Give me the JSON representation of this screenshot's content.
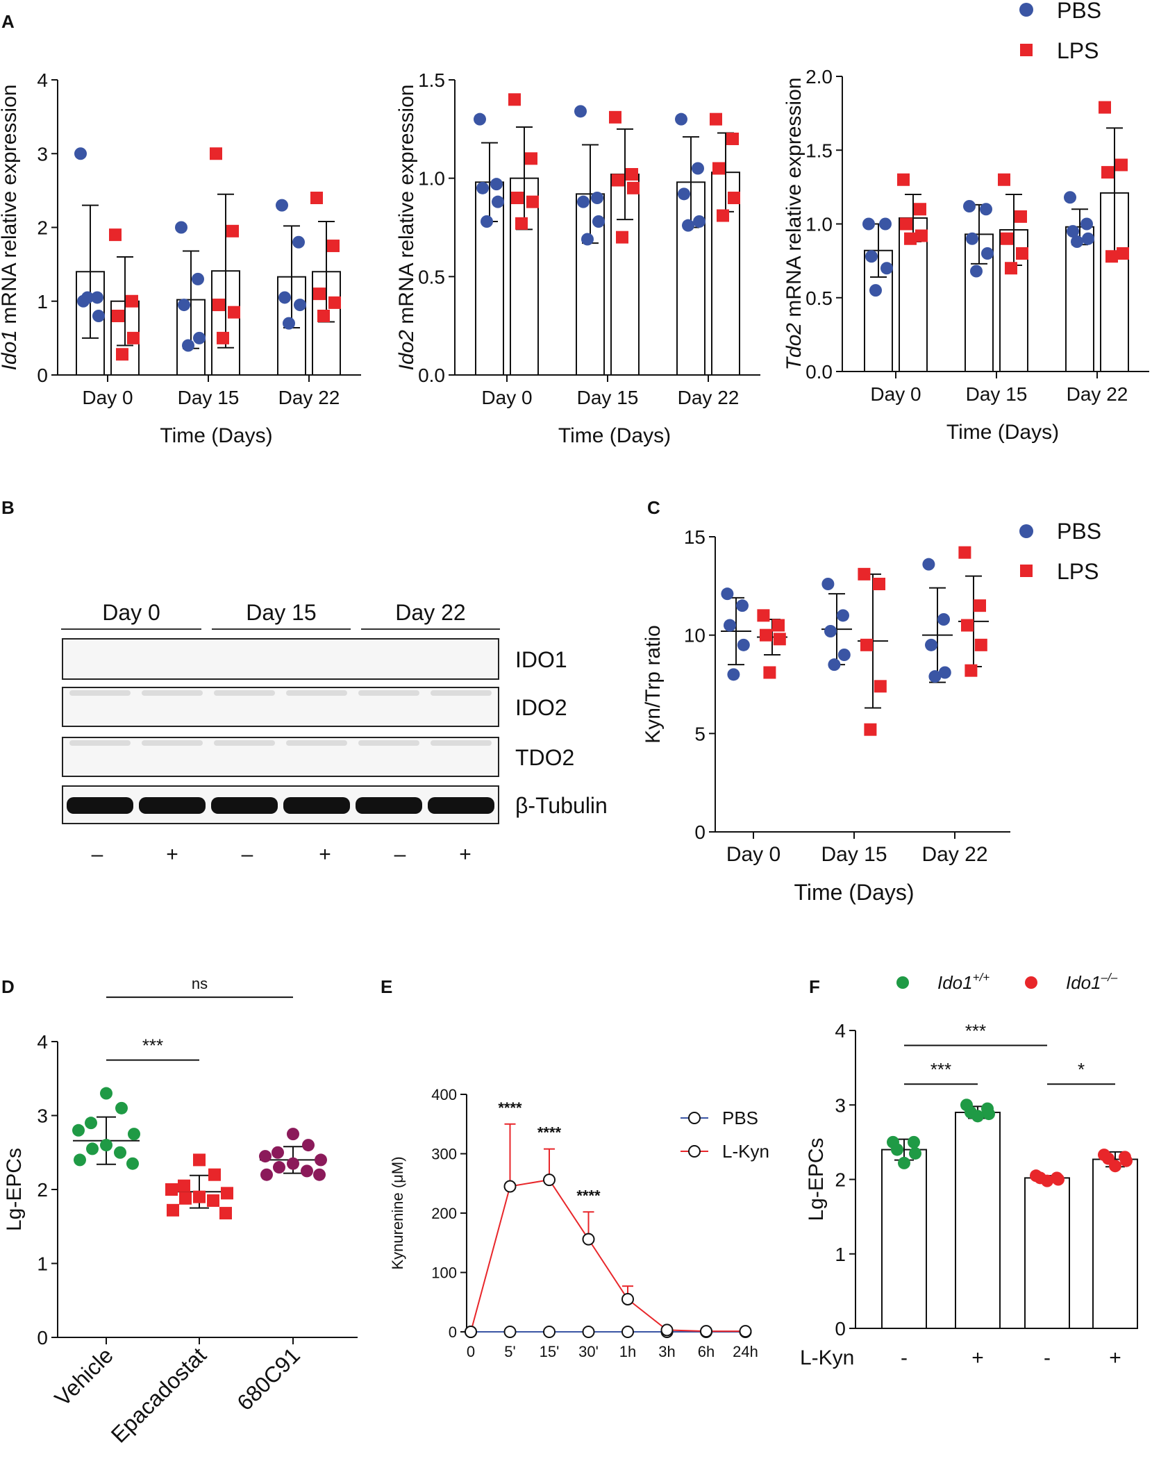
{
  "colors": {
    "pbs": "#3a55a4",
    "lps": "#e8262a",
    "wt": "#1f9a45",
    "ko": "#e8262a",
    "purple": "#8b1a5a",
    "axis": "#111111"
  },
  "panel_labels": {
    "a": "A",
    "b": "B",
    "c": "C",
    "d": "D",
    "e": "E",
    "f": "F"
  },
  "legend_top": {
    "pbs": "PBS",
    "lps": "LPS"
  },
  "legend_c": {
    "pbs": "PBS",
    "lps": "LPS"
  },
  "chart_data": [
    {
      "id": "A1",
      "type": "bar",
      "title": "",
      "ylabel_italic": "Ido1",
      "ylabel_rest": " mRNA relative expression",
      "xlabel": "Time (Days)",
      "categories": [
        "Day 0",
        "Day 15",
        "Day 22"
      ],
      "ylim": [
        0,
        4
      ],
      "yticks": [
        "0",
        "1",
        "2",
        "3",
        "4"
      ],
      "ytick_values": [
        0,
        1,
        2,
        3,
        4
      ],
      "series": [
        {
          "name": "PBS",
          "means": [
            1.4,
            1.02,
            1.33
          ],
          "sd": [
            0.9,
            0.66,
            0.69
          ],
          "points": [
            [
              3.0,
              1.05,
              1.0,
              0.8,
              1.05
            ],
            [
              2.0,
              1.3,
              0.95,
              0.5,
              0.4
            ],
            [
              2.3,
              1.8,
              1.05,
              0.95,
              0.7
            ]
          ]
        },
        {
          "name": "LPS",
          "means": [
            1.0,
            1.41,
            1.4
          ],
          "sd": [
            0.6,
            1.04,
            0.68
          ],
          "points": [
            [
              1.9,
              1.0,
              0.8,
              0.5,
              0.28
            ],
            [
              3.0,
              1.95,
              0.95,
              0.85,
              0.5
            ],
            [
              2.4,
              1.75,
              1.1,
              0.98,
              0.8
            ]
          ]
        }
      ]
    },
    {
      "id": "A2",
      "type": "bar",
      "ylabel_italic": "Ido2",
      "ylabel_rest": " mRNA relative expression",
      "xlabel": "Time (Days)",
      "categories": [
        "Day 0",
        "Day 15",
        "Day 22"
      ],
      "ylim": [
        0,
        1.5
      ],
      "yticks": [
        "0.0",
        "0.5",
        "1.0",
        "1.5"
      ],
      "ytick_values": [
        0,
        0.5,
        1.0,
        1.5
      ],
      "series": [
        {
          "name": "PBS",
          "means": [
            0.98,
            0.92,
            0.98
          ],
          "sd": [
            0.2,
            0.25,
            0.23
          ],
          "points": [
            [
              1.3,
              0.97,
              0.95,
              0.88,
              0.78
            ],
            [
              1.34,
              0.9,
              0.88,
              0.78,
              0.69
            ],
            [
              1.3,
              1.05,
              0.92,
              0.78,
              0.76
            ]
          ]
        },
        {
          "name": "LPS",
          "means": [
            1.0,
            1.02,
            1.03
          ],
          "sd": [
            0.26,
            0.23,
            0.2
          ],
          "points": [
            [
              1.4,
              1.1,
              0.9,
              0.88,
              0.77
            ],
            [
              1.31,
              1.02,
              0.99,
              0.95,
              0.7
            ],
            [
              1.3,
              1.2,
              1.05,
              0.9,
              0.81
            ]
          ]
        }
      ]
    },
    {
      "id": "A3",
      "type": "bar",
      "ylabel_italic": "Tdo2",
      "ylabel_rest": " mRNA relative expression",
      "xlabel": "Time (Days)",
      "categories": [
        "Day 0",
        "Day 15",
        "Day 22"
      ],
      "ylim": [
        0,
        2.0
      ],
      "yticks": [
        "0.0",
        "0.5",
        "1.0",
        "1.5",
        "2.0"
      ],
      "ytick_values": [
        0,
        0.5,
        1.0,
        1.5,
        2.0
      ],
      "series": [
        {
          "name": "PBS",
          "means": [
            0.82,
            0.93,
            0.98
          ],
          "sd": [
            0.18,
            0.2,
            0.12
          ],
          "points": [
            [
              1.0,
              1.0,
              0.78,
              0.7,
              0.55
            ],
            [
              1.12,
              1.1,
              0.9,
              0.8,
              0.68
            ],
            [
              1.18,
              1.0,
              0.95,
              0.9,
              0.88
            ]
          ]
        },
        {
          "name": "LPS",
          "means": [
            1.04,
            0.96,
            1.21
          ],
          "sd": [
            0.16,
            0.24,
            0.44
          ],
          "points": [
            [
              1.3,
              1.1,
              1.0,
              0.92,
              0.9
            ],
            [
              1.3,
              1.05,
              0.9,
              0.8,
              0.7
            ],
            [
              1.79,
              1.4,
              1.35,
              0.8,
              0.78
            ]
          ]
        }
      ]
    },
    {
      "id": "C",
      "type": "scatter",
      "ylabel": "Kyn/Trp ratio",
      "xlabel": "Time (Days)",
      "categories": [
        "Day 0",
        "Day 15",
        "Day 22"
      ],
      "ylim": [
        0,
        15
      ],
      "yticks": [
        "0",
        "5",
        "10",
        "15"
      ],
      "ytick_values": [
        0,
        5,
        10,
        15
      ],
      "series": [
        {
          "name": "PBS",
          "means": [
            10.2,
            10.3,
            10.0
          ],
          "sd": [
            1.7,
            1.8,
            2.4
          ],
          "points": [
            [
              12.1,
              11.5,
              10.5,
              9.5,
              8.0
            ],
            [
              12.6,
              11.0,
              10.2,
              9.0,
              8.5
            ],
            [
              13.6,
              10.8,
              9.5,
              8.1,
              7.9
            ]
          ]
        },
        {
          "name": "LPS",
          "means": [
            9.9,
            9.7,
            10.7
          ],
          "sd": [
            0.9,
            3.4,
            2.3
          ],
          "points": [
            [
              11.0,
              10.5,
              10.0,
              9.8,
              8.1
            ],
            [
              13.1,
              12.6,
              9.5,
              7.4,
              5.2
            ],
            [
              14.2,
              11.5,
              10.5,
              9.5,
              8.2
            ]
          ]
        }
      ]
    },
    {
      "id": "D",
      "type": "scatter",
      "ylabel": "Lg-EPCs",
      "categories": [
        "Vehicle",
        "Epacadostat",
        "680C91"
      ],
      "ylim": [
        0,
        4
      ],
      "yticks": [
        "0",
        "1",
        "2",
        "3",
        "4"
      ],
      "ytick_values": [
        0,
        1,
        2,
        3,
        4
      ],
      "groups": [
        {
          "name": "Vehicle",
          "mean": 2.66,
          "sd": 0.32,
          "points": [
            3.3,
            3.1,
            2.9,
            2.8,
            2.75,
            2.6,
            2.55,
            2.5,
            2.4,
            2.35
          ]
        },
        {
          "name": "Epacadostat",
          "mean": 1.97,
          "sd": 0.22,
          "points": [
            2.4,
            2.2,
            2.05,
            2.0,
            1.95,
            1.9,
            1.88,
            1.85,
            1.72,
            1.68
          ]
        },
        {
          "name": "680C91",
          "mean": 2.4,
          "sd": 0.18,
          "points": [
            2.75,
            2.6,
            2.5,
            2.45,
            2.4,
            2.35,
            2.3,
            2.25,
            2.2,
            2.2
          ]
        }
      ],
      "annotations": [
        {
          "text": "***",
          "from": "Vehicle",
          "to": "Epacadostat",
          "y": 3.75
        },
        {
          "text": "ns",
          "from": "Vehicle",
          "to": "680C91",
          "y": 4.6
        }
      ]
    },
    {
      "id": "E",
      "type": "line",
      "ylabel": "Kynurenine (μM)",
      "x": [
        "0",
        "5'",
        "15'",
        "30'",
        "1h",
        "3h",
        "6h",
        "24h"
      ],
      "ylim": [
        0,
        400
      ],
      "yticks": [
        "0",
        "100",
        "200",
        "300",
        "400"
      ],
      "ytick_values": [
        0,
        100,
        200,
        300,
        400
      ],
      "series": [
        {
          "name": "PBS",
          "values": [
            0,
            0,
            0,
            0,
            0,
            0,
            0,
            0
          ],
          "err": [
            0,
            0,
            0,
            0,
            0,
            0,
            0,
            0
          ]
        },
        {
          "name": "L-Kyn",
          "values": [
            0,
            245,
            256,
            156,
            55,
            3,
            1,
            1
          ],
          "err": [
            0,
            105,
            52,
            46,
            22,
            2,
            0,
            0
          ]
        }
      ],
      "annotations": [
        {
          "text": "****",
          "x": "5'"
        },
        {
          "text": "****",
          "x": "15'"
        },
        {
          "text": "****",
          "x": "30'"
        }
      ]
    },
    {
      "id": "F",
      "type": "bar",
      "ylabel": "Lg-EPCs",
      "x_row_label": "L-Kyn",
      "categories": [
        "-",
        "+",
        "-",
        "+"
      ],
      "ylim": [
        0,
        4
      ],
      "yticks": [
        "0",
        "1",
        "2",
        "3",
        "4"
      ],
      "ytick_values": [
        0,
        1,
        2,
        3,
        4
      ],
      "legend": [
        {
          "italic": "Ido1",
          "sup": "+/+"
        },
        {
          "italic": "Ido1",
          "sup": "–/–"
        }
      ],
      "bars": [
        {
          "genotype": "Ido1+/+",
          "mean": 2.4,
          "sd": 0.14,
          "points": [
            2.5,
            2.5,
            2.4,
            2.35,
            2.22
          ]
        },
        {
          "genotype": "Ido1+/+",
          "mean": 2.9,
          "sd": 0.08,
          "points": [
            3.0,
            2.95,
            2.9,
            2.88,
            2.85
          ]
        },
        {
          "genotype": "Ido1-/-",
          "mean": 2.02,
          "sd": 0.03,
          "points": [
            2.05,
            2.02,
            2.02,
            2.0,
            1.98
          ]
        },
        {
          "genotype": "Ido1-/-",
          "mean": 2.27,
          "sd": 0.1,
          "points": [
            2.33,
            2.3,
            2.28,
            2.25,
            2.18
          ]
        }
      ],
      "annotations": [
        {
          "text": "***",
          "from": 0,
          "to": 1,
          "y": 3.28
        },
        {
          "text": "***",
          "from": 0,
          "to": 2,
          "y": 3.8
        },
        {
          "text": "*",
          "from": 2,
          "to": 3,
          "y": 3.28
        }
      ]
    }
  ],
  "western_blot": {
    "day_labels": [
      "Day 0",
      "Day 15",
      "Day 22"
    ],
    "proteins": [
      "IDO1",
      "IDO2",
      "TDO2",
      "β-Tubulin"
    ],
    "treatment": [
      "–",
      "+",
      "–",
      "+",
      "–",
      "+"
    ]
  }
}
